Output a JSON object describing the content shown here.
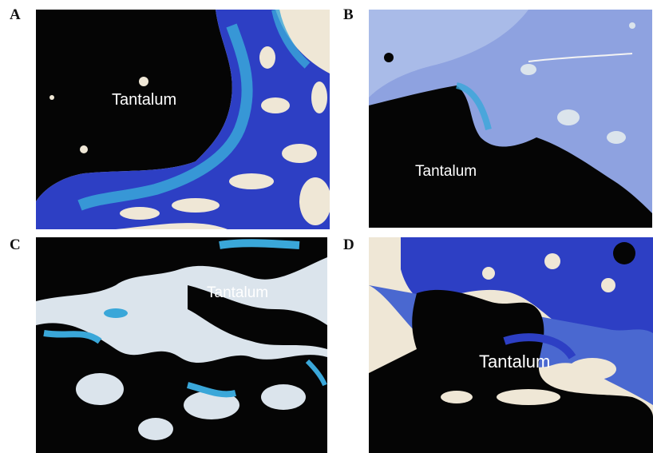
{
  "panels": [
    {
      "letter": "A",
      "label": "Tantalum"
    },
    {
      "letter": "B",
      "label": "Tantalum"
    },
    {
      "letter": "C",
      "label": "Tantalum"
    },
    {
      "letter": "D",
      "label": "Tantalum"
    }
  ],
  "colors": {
    "tantalum": "#050505",
    "bone_blue": "#2d3fc4",
    "bone_light": "#6a86d8",
    "cartilage_cyan": "#3aa7d9",
    "marrow_cream": "#efe7d6",
    "soft_tissue": "#dbe4ec"
  }
}
